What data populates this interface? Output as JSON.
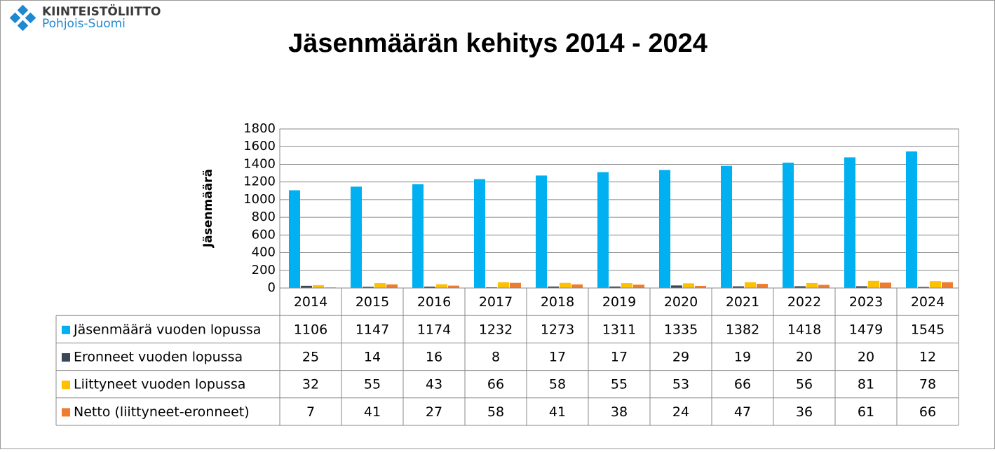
{
  "logo": {
    "name": "KIINTEISTÖLIITTO",
    "region": "Pohjois-Suomi"
  },
  "chart_data": {
    "type": "bar",
    "title": "Jäsenmäärän kehitys 2014 - 2024",
    "y_label": "Jäsenmäärä",
    "categories": [
      "2014",
      "2015",
      "2016",
      "2017",
      "2018",
      "2019",
      "2020",
      "2021",
      "2022",
      "2023",
      "2024"
    ],
    "series": [
      {
        "name": "Jäsenmäärä vuoden lopussa",
        "color": "#00b0f0",
        "values": [
          1106,
          1147,
          1174,
          1232,
          1273,
          1311,
          1335,
          1382,
          1418,
          1479,
          1545
        ]
      },
      {
        "name": "Eronneet vuoden lopussa",
        "color": "#3b4656",
        "values": [
          25,
          14,
          16,
          8,
          17,
          17,
          29,
          19,
          20,
          20,
          12
        ]
      },
      {
        "name": "Liittyneet vuoden lopussa",
        "color": "#ffc000",
        "values": [
          32,
          55,
          43,
          66,
          58,
          55,
          53,
          66,
          56,
          81,
          78
        ]
      },
      {
        "name": "Netto (liittyneet-eronneet)",
        "color": "#ed7d31",
        "values": [
          7,
          41,
          27,
          58,
          41,
          38,
          24,
          47,
          36,
          61,
          66
        ]
      }
    ],
    "ylim": [
      0,
      1800
    ],
    "yticks": [
      0,
      200,
      400,
      600,
      800,
      1000,
      1200,
      1400,
      1600,
      1800
    ],
    "grid": true
  }
}
